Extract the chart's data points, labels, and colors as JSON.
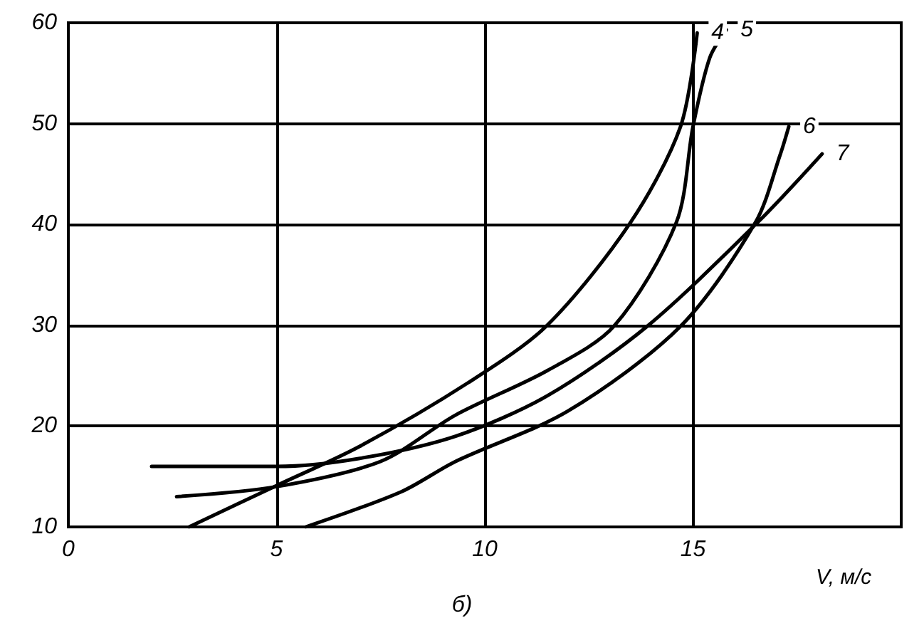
{
  "chart_data": {
    "type": "line",
    "title": "б)",
    "xlabel": "V, м/с",
    "xlim": [
      0,
      20
    ],
    "xticks": [
      0,
      5,
      10,
      15
    ],
    "ylim": [
      10,
      60
    ],
    "yticks": [
      10,
      20,
      30,
      40,
      50,
      60
    ],
    "grid": true,
    "marker": "none",
    "line_style": "solid",
    "series": [
      {
        "name": "4",
        "color": "#000000",
        "x": [
          2.9,
          5,
          7,
          9.6,
          11.5,
          13.5,
          14.7,
          15.1
        ],
        "values": [
          10,
          14.1,
          18,
          24.3,
          30,
          40.2,
          49.7,
          59
        ]
      },
      {
        "name": "5",
        "color": "#000000",
        "x": [
          2.6,
          5,
          7.5,
          9.3,
          11.5,
          13.1,
          14.6,
          15.0,
          15.4,
          15.8
        ],
        "values": [
          13,
          14,
          16.5,
          21.1,
          25.5,
          29.9,
          40.2,
          49.7,
          56.5,
          59.3
        ]
      },
      {
        "name": "6",
        "color": "#000000",
        "x": [
          5.7,
          8,
          9.3,
          12,
          14.7,
          16.5,
          17.1,
          17.3
        ],
        "values": [
          10,
          13.5,
          16.5,
          21.5,
          29.9,
          40.2,
          47,
          49.7
        ]
      },
      {
        "name": "7",
        "color": "#000000",
        "x": [
          2.0,
          5,
          7,
          9.3,
          11.5,
          13.9,
          16.6,
          18.1
        ],
        "values": [
          16,
          16,
          16.8,
          19,
          23,
          29.9,
          40.4,
          47
        ]
      }
    ]
  }
}
